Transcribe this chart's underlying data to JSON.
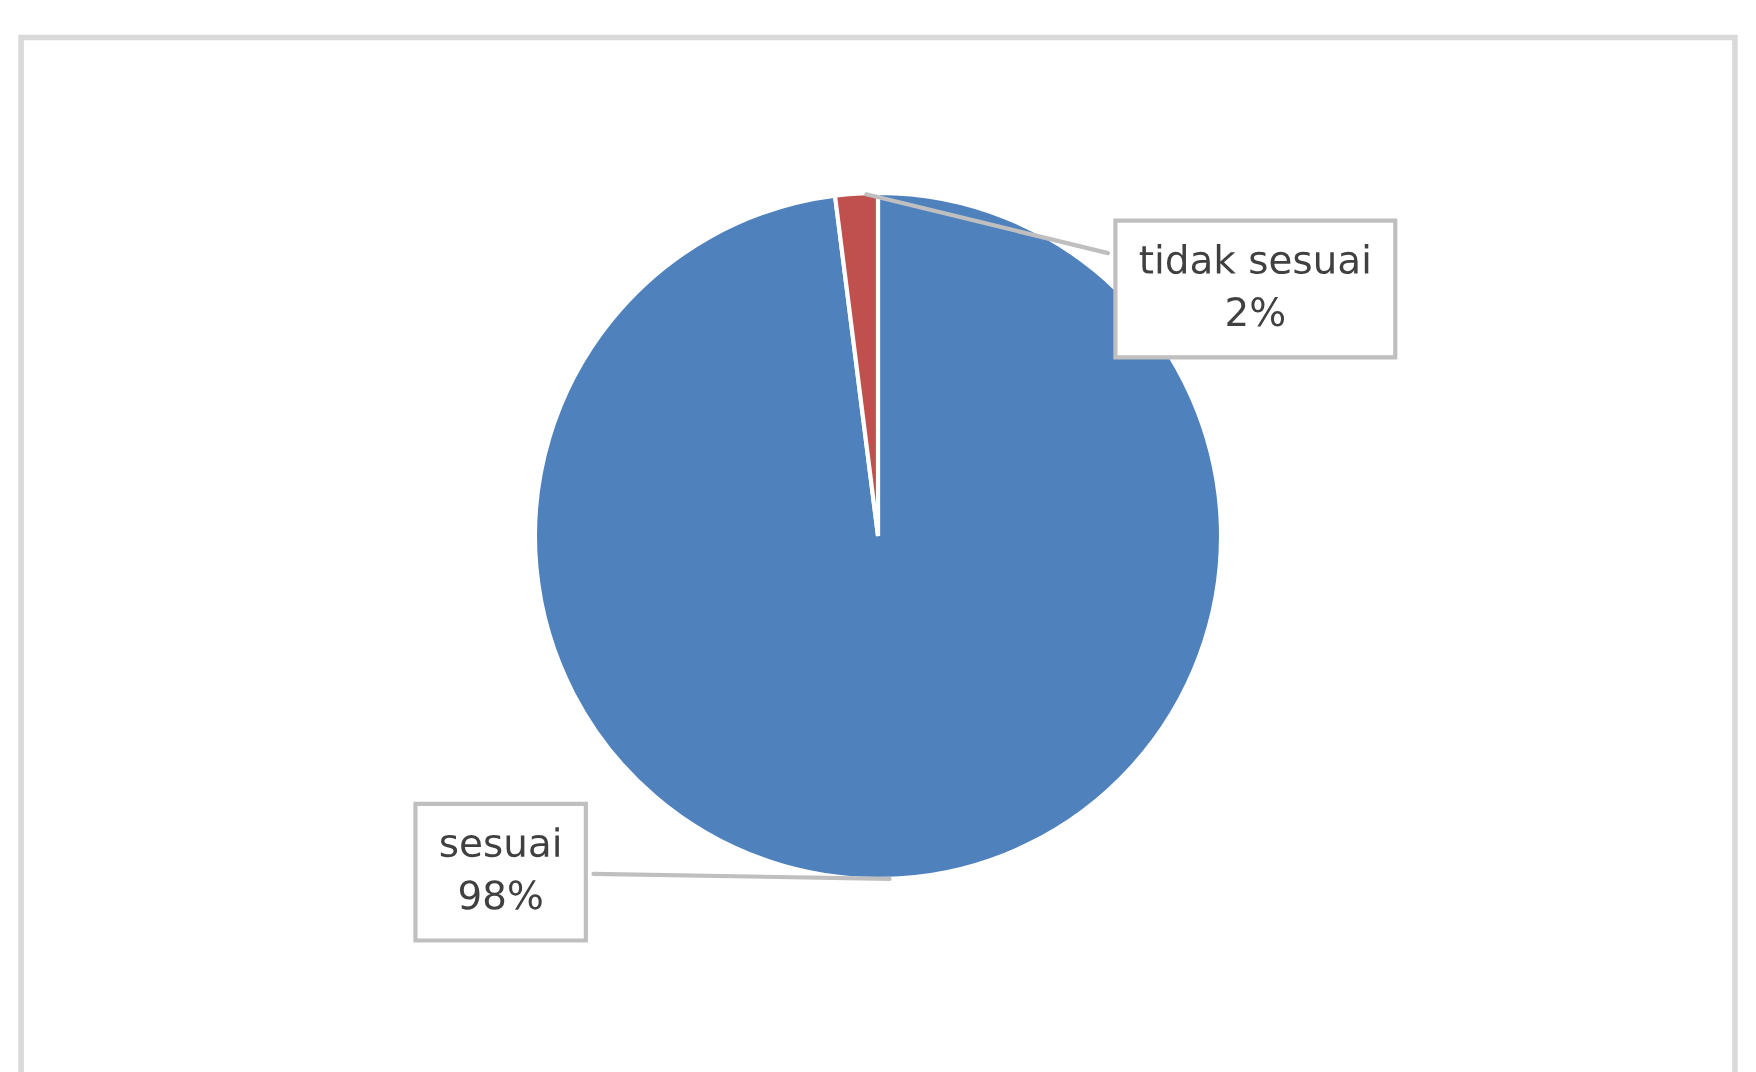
{
  "chart_data": {
    "type": "pie",
    "categories": [
      "sesuai",
      "tidak sesuai"
    ],
    "values": [
      98,
      2
    ],
    "colors": [
      "#4f81bd",
      "#c0504d"
    ],
    "value_labels": [
      "98%",
      "2%"
    ]
  }
}
